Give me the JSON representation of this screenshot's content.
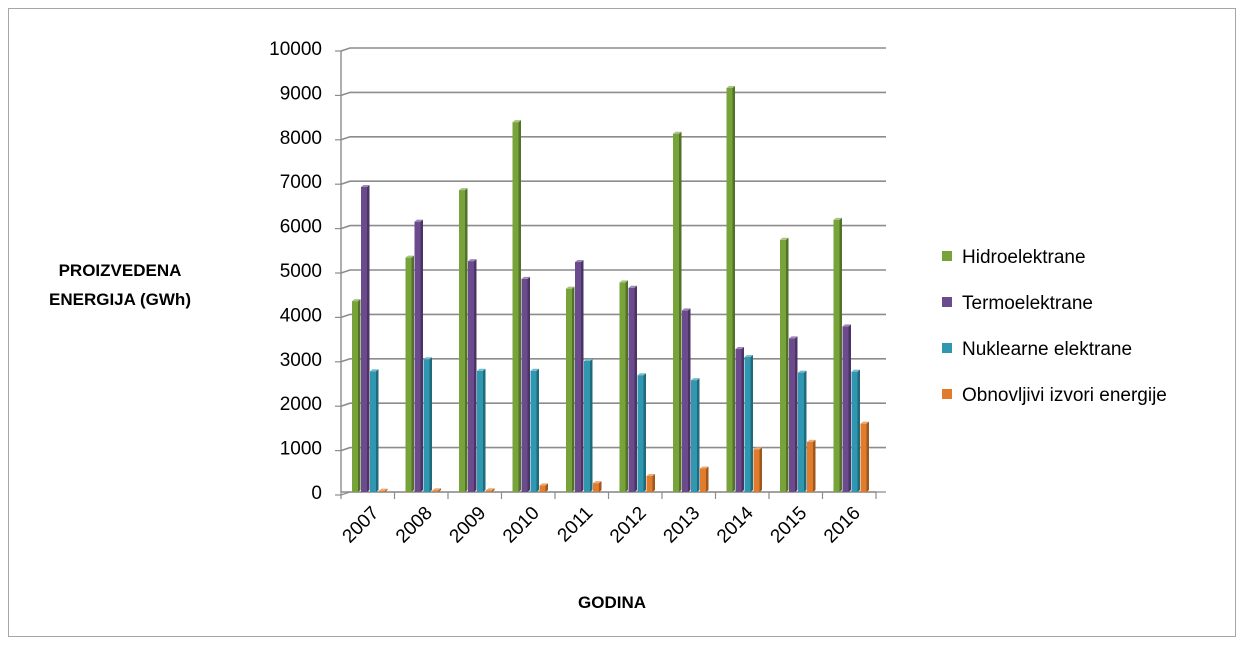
{
  "chart_data": {
    "type": "bar",
    "title": "",
    "xlabel": "GODINA",
    "ylabel_lines": [
      "PROIZVEDENA",
      "ENERGIJA (GWh)"
    ],
    "ylim": [
      0,
      10000
    ],
    "yticks": [
      "0",
      "1000",
      "2000",
      "3000",
      "4000",
      "5000",
      "6000",
      "7000",
      "8000",
      "9000",
      "10000"
    ],
    "categories": [
      "2007",
      "2008",
      "2009",
      "2010",
      "2011",
      "2012",
      "2013",
      "2014",
      "2015",
      "2016"
    ],
    "grid": true,
    "legend_position": "right",
    "series": [
      {
        "name": "Hidroelektrane",
        "color": "#77a33a",
        "values": [
          4300,
          5280,
          6800,
          8330,
          4580,
          4720,
          8070,
          9100,
          5680,
          6130
        ]
      },
      {
        "name": "Termoelektrane",
        "color": "#6b4a8e",
        "values": [
          6870,
          6090,
          5200,
          4800,
          5180,
          4600,
          4090,
          3220,
          3460,
          3730
        ]
      },
      {
        "name": "Nuklearne elektrane",
        "color": "#2f97b0",
        "values": [
          2720,
          2990,
          2730,
          2730,
          2950,
          2630,
          2520,
          3040,
          2690,
          2710
        ]
      },
      {
        "name": "Obnovljivi izvori energije",
        "color": "#e07c2c",
        "values": [
          30,
          40,
          40,
          150,
          200,
          360,
          530,
          960,
          1130,
          1540
        ]
      }
    ]
  }
}
